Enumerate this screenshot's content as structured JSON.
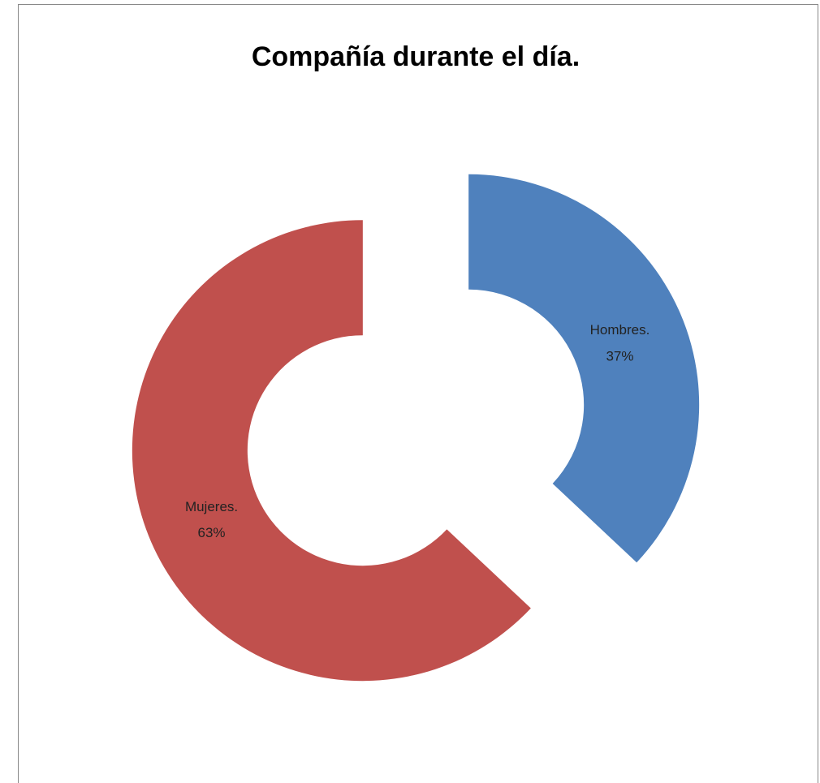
{
  "chart_data": {
    "type": "donut",
    "title": "Compañía durante el día.",
    "categories": [
      "Hombres.",
      "Mujeres."
    ],
    "values": [
      37,
      63
    ],
    "value_labels": [
      "37%",
      "63%"
    ],
    "colors": [
      "#4f81bd",
      "#c0504d"
    ]
  }
}
